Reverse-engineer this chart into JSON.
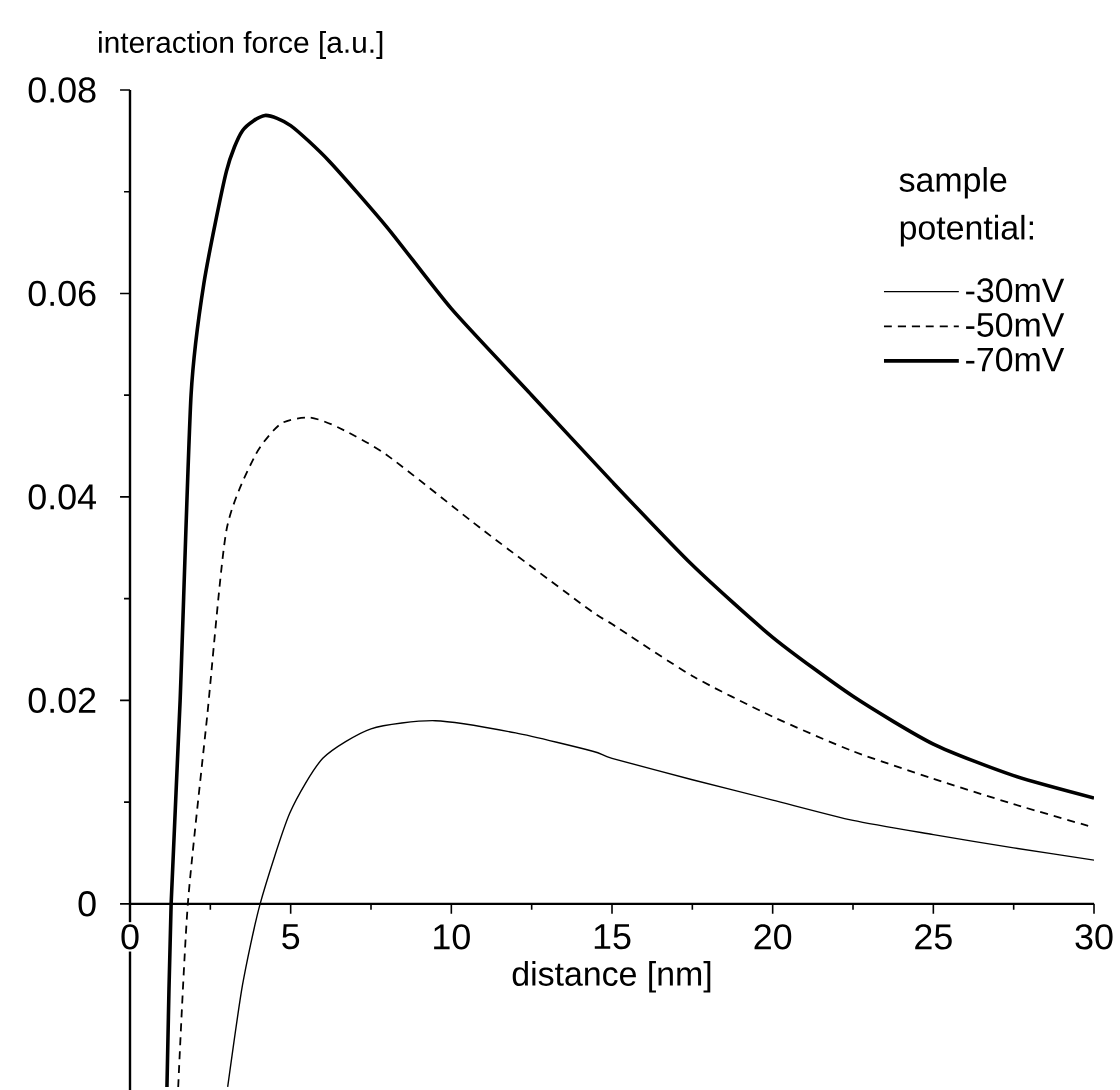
{
  "chart_data": {
    "type": "line",
    "xlabel": "distance [nm]",
    "ylabel": "interaction force [a.u.]",
    "legend_title": "sample potential:",
    "legend": "top right",
    "xlim": [
      0,
      30
    ],
    "ylim": [
      -0.0183,
      0.08
    ],
    "xticks": [
      0,
      5,
      10,
      15,
      20,
      25,
      30
    ],
    "yticks": [
      0,
      0.02,
      0.04,
      0.06,
      0.08
    ],
    "series": [
      {
        "name": "-30mV",
        "color": "#000000",
        "line_style": "solid",
        "x": [
          3.04,
          3.5,
          4.05,
          4.97,
          6.0,
          7.5,
          9.5,
          12,
          14.4,
          15,
          17.5,
          20,
          22.5,
          25,
          27.5,
          30
        ],
        "values": [
          -0.018,
          -0.008,
          0,
          0.0089,
          0.0143,
          0.0172,
          0.018,
          0.0168,
          0.015,
          0.0143,
          0.0122,
          0.0102,
          0.0082,
          0.0068,
          0.0055,
          0.0043
        ]
      },
      {
        "name": "-50mV",
        "color": "#000000",
        "line_style": "dashed",
        "x": [
          1.5,
          1.8,
          2.4,
          3.0,
          3.9,
          4.7,
          5.6,
          6.5,
          8.0,
          11,
          14.3,
          15,
          17.5,
          20,
          22.5,
          25,
          27.5,
          30
        ],
        "values": [
          -0.018,
          0,
          0.0184,
          0.0367,
          0.0441,
          0.0472,
          0.0478,
          0.0468,
          0.0441,
          0.0367,
          0.0289,
          0.0275,
          0.0224,
          0.0184,
          0.015,
          0.0123,
          0.0098,
          0.0075
        ]
      },
      {
        "name": "-70mV",
        "color": "#000000",
        "line_style": "solid",
        "x": [
          1.15,
          1.28,
          1.56,
          1.9,
          2.3,
          3.0,
          3.5,
          4.2,
          5.0,
          6.2,
          8.0,
          10,
          12.5,
          15,
          17.5,
          20,
          22.5,
          25,
          27.5,
          30
        ],
        "values": [
          -0.018,
          0,
          0.02,
          0.05,
          0.061,
          0.072,
          0.076,
          0.0775,
          0.0765,
          0.073,
          0.0665,
          0.0585,
          0.05,
          0.0415,
          0.0333,
          0.0262,
          0.0204,
          0.0157,
          0.0126,
          0.0104
        ]
      }
    ]
  }
}
